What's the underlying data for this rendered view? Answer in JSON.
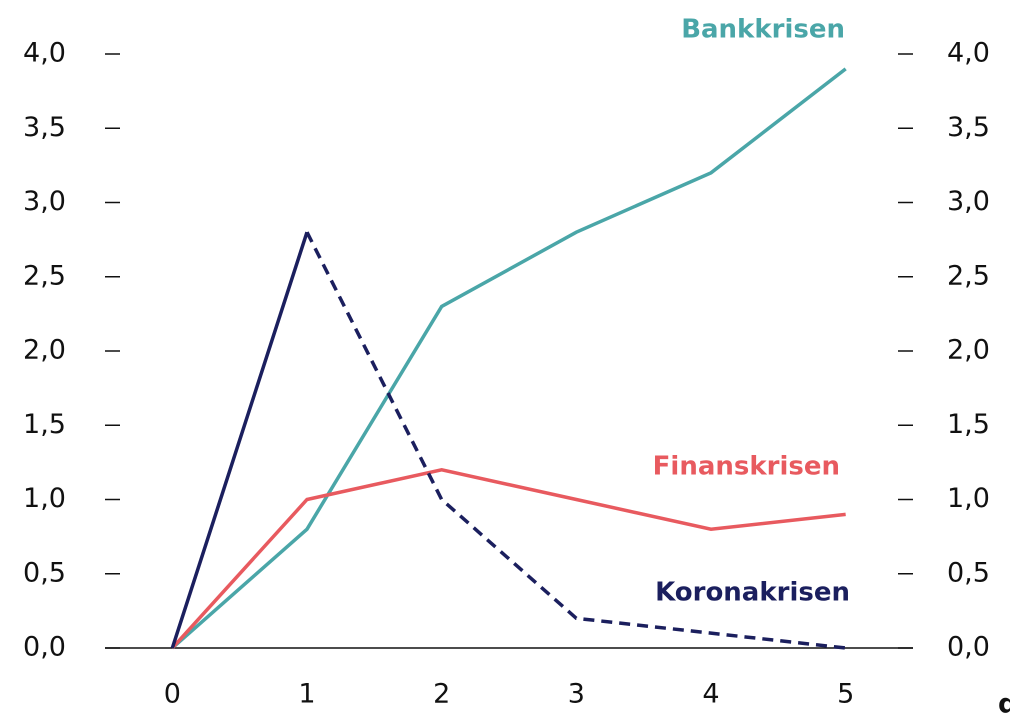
{
  "chart_data": {
    "type": "line",
    "x": [
      0,
      1,
      2,
      3,
      4,
      5
    ],
    "xlim": [
      -0.5,
      5.5
    ],
    "xticks": [
      0,
      1,
      2,
      3,
      4,
      5
    ],
    "x_label": "d",
    "ylim": [
      0,
      4
    ],
    "yticks": [
      {
        "value": 0,
        "label": "0,0"
      },
      {
        "value": 0.5,
        "label": "0,5"
      },
      {
        "value": 1,
        "label": "1,0"
      },
      {
        "value": 1.5,
        "label": "1,5"
      },
      {
        "value": 2,
        "label": "2,0"
      },
      {
        "value": 2.5,
        "label": "2,5"
      },
      {
        "value": 3,
        "label": "3,0"
      },
      {
        "value": 3.5,
        "label": "3,5"
      },
      {
        "value": 4,
        "label": "4,0"
      }
    ],
    "y2lim": [
      0,
      4
    ],
    "y2ticks": [
      {
        "value": 0,
        "label": "0,0"
      },
      {
        "value": 0.5,
        "label": "0,5"
      },
      {
        "value": 1,
        "label": "1,0"
      },
      {
        "value": 1.5,
        "label": "1,5"
      },
      {
        "value": 2,
        "label": "2,0"
      },
      {
        "value": 2.5,
        "label": "2,5"
      },
      {
        "value": 3,
        "label": "3,0"
      },
      {
        "value": 3.5,
        "label": "3,5"
      },
      {
        "value": 4,
        "label": "4,0"
      }
    ],
    "series": [
      {
        "name": "Bankkrisen",
        "color": "#4aa6a8",
        "values": [
          0,
          0.8,
          2.3,
          2.8,
          3.2,
          3.9
        ]
      },
      {
        "name": "Finanskrisen",
        "color": "#e85a5f",
        "values": [
          0,
          1.0,
          1.2,
          1.0,
          0.8,
          0.9
        ]
      },
      {
        "name": "Koronakrisen",
        "color": "#1b1f5e",
        "values": [
          0,
          2.8,
          1.0,
          0.2,
          0.1,
          0.0
        ],
        "dashed_from": 1
      }
    ]
  }
}
